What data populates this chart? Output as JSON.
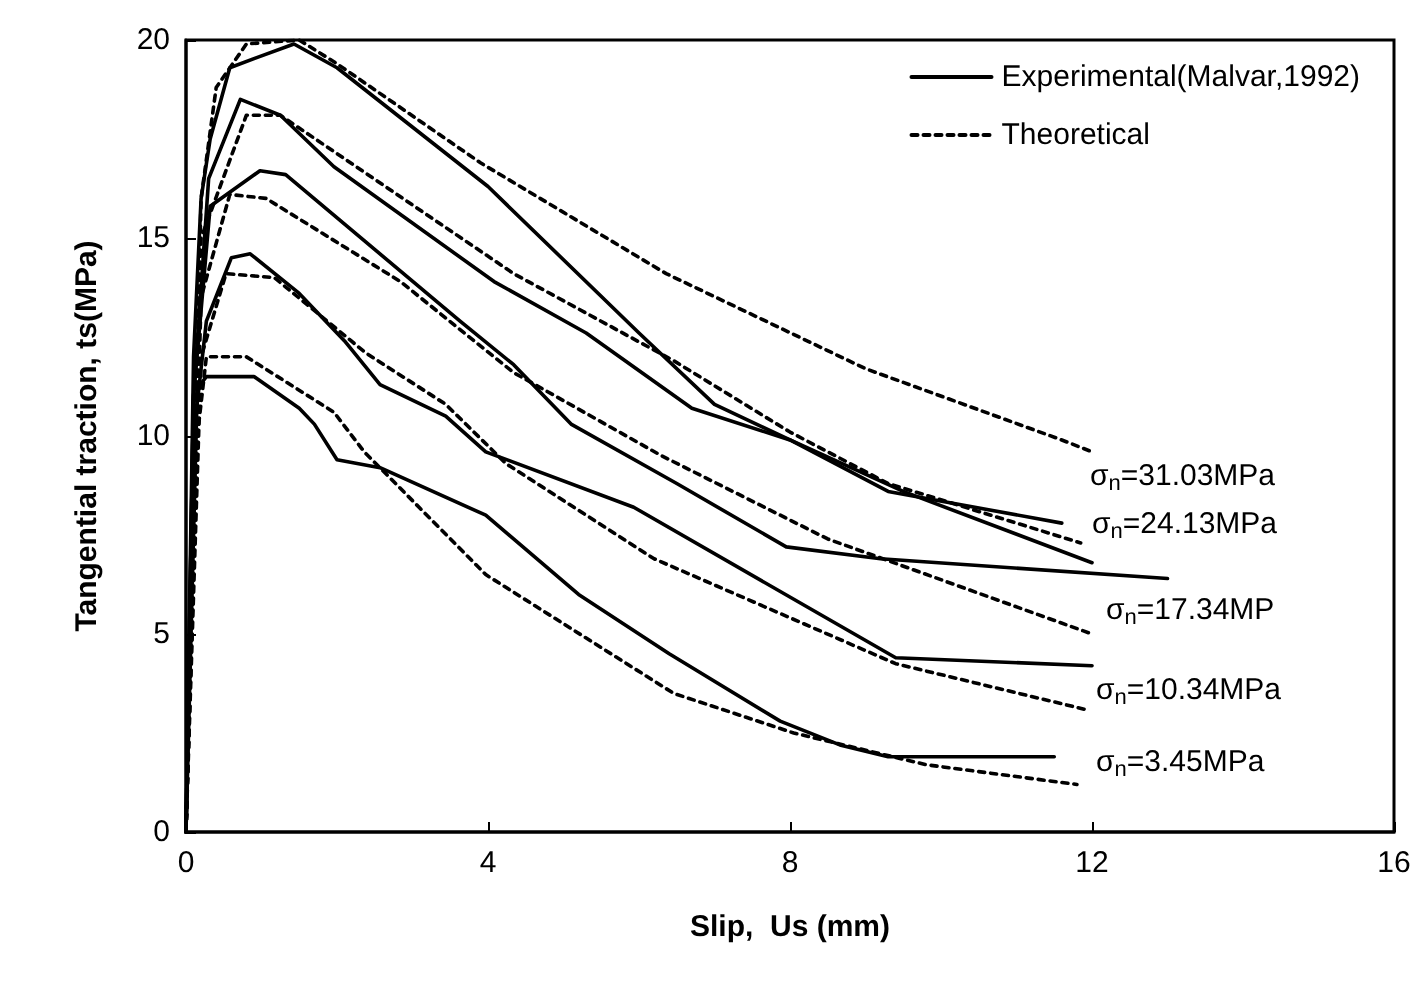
{
  "chart_data": {
    "type": "line",
    "xlabel": "Slip,  Us (mm)",
    "ylabel": "Tangential traction, ts(MPa)",
    "xlim": [
      0,
      16
    ],
    "xticks": [
      0,
      4,
      8,
      12,
      16
    ],
    "ylim": [
      0,
      20
    ],
    "yticks": [
      0,
      5,
      10,
      15,
      20
    ],
    "grid": false,
    "legend": "top right",
    "marker": "none",
    "series": [
      {
        "name": "Experimental(Malvar,1992)",
        "color": "#000000",
        "line_style": "solid",
        "x": [
          0,
          0.1,
          0.2,
          0.32,
          0.58,
          1.0,
          1.43,
          2.0,
          4.0,
          6.0,
          7.0,
          8.0,
          9.3,
          11.6
        ],
        "values": [
          0,
          12,
          16,
          17.5,
          19.3,
          19.6,
          19.9,
          19.3,
          16.3,
          12.6,
          10.8,
          9.9,
          8.6,
          7.8
        ]
      },
      {
        "color": "#000000",
        "line_style": "solid",
        "x": [
          0,
          0.1,
          0.3,
          0.72,
          1.25,
          1.96,
          4.08,
          5.3,
          6.7,
          8.0,
          9.5,
          12.0
        ],
        "values": [
          0,
          11,
          16.5,
          18.5,
          18.1,
          16.8,
          13.9,
          12.6,
          10.7,
          9.9,
          8.6,
          6.8
        ]
      },
      {
        "color": "#000000",
        "line_style": "solid",
        "x": [
          0,
          0.1,
          0.32,
          0.98,
          1.32,
          3.63,
          4.34,
          5.1,
          6.5,
          7.95,
          9.2,
          13.0
        ],
        "values": [
          0,
          11,
          15.8,
          16.7,
          16.6,
          12.9,
          11.8,
          10.3,
          8.8,
          7.2,
          6.9,
          6.4
        ]
      },
      {
        "color": "#000000",
        "line_style": "solid",
        "x": [
          0,
          0.1,
          0.27,
          0.6,
          0.85,
          1.5,
          2.1,
          2.57,
          3.44,
          3.97,
          5.93,
          9.4,
          12.0
        ],
        "values": [
          0,
          10,
          12.9,
          14.5,
          14.6,
          13.6,
          12.4,
          11.3,
          10.5,
          9.6,
          8.2,
          4.4,
          4.2
        ]
      },
      {
        "color": "#000000",
        "line_style": "solid",
        "x": [
          0,
          0.15,
          0.27,
          0.9,
          1.5,
          1.7,
          2.0,
          2.57,
          3.97,
          5.2,
          6.4,
          7.87,
          8.66,
          9.3,
          11.5
        ],
        "values": [
          0,
          11.2,
          11.5,
          11.5,
          10.7,
          10.3,
          9.4,
          9.2,
          8.0,
          6.0,
          4.5,
          2.8,
          2.2,
          1.9,
          1.9
        ]
      },
      {
        "name": "Theoretical",
        "color": "#000000",
        "line_style": "dashed",
        "x": [
          0,
          0.2,
          0.4,
          0.8,
          1.5,
          2.0,
          3.9,
          6.36,
          9.0,
          11.6,
          12.0
        ],
        "values": [
          0,
          16,
          18.8,
          19.9,
          20,
          19.4,
          16.9,
          14.1,
          11.7,
          9.9,
          9.6
        ]
      },
      {
        "color": "#000000",
        "line_style": "dashed",
        "x": [
          0,
          0.2,
          0.8,
          1.25,
          2.1,
          4.34,
          6.46,
          8.0,
          9.3,
          11.85
        ],
        "values": [
          0,
          15,
          18.1,
          18.1,
          17.0,
          14.1,
          11.9,
          10.1,
          8.8,
          7.3
        ]
      },
      {
        "color": "#000000",
        "line_style": "dashed",
        "x": [
          0,
          0.2,
          0.58,
          1.06,
          2.84,
          4.34,
          6.3,
          8.5,
          12.0
        ],
        "values": [
          0,
          13.5,
          16.1,
          16.0,
          13.9,
          11.6,
          9.5,
          7.4,
          5.0
        ]
      },
      {
        "color": "#000000",
        "line_style": "dashed",
        "x": [
          0,
          0.2,
          0.53,
          1.17,
          2.38,
          3.44,
          4.24,
          6.2,
          9.4,
          11.9
        ],
        "values": [
          0,
          12,
          14.1,
          14.0,
          12.1,
          10.8,
          9.3,
          6.9,
          4.25,
          3.1
        ]
      },
      {
        "color": "#000000",
        "line_style": "dashed",
        "x": [
          0,
          0.15,
          0.27,
          0.8,
          1.96,
          2.36,
          3.97,
          6.46,
          8.05,
          9.8,
          11.8
        ],
        "values": [
          0,
          10,
          12.0,
          12.0,
          10.6,
          9.6,
          6.5,
          3.5,
          2.5,
          1.7,
          1.2
        ]
      }
    ],
    "annotations": [
      "σ$_{n}$=31.03MPa",
      "σ$_{n}$=24.13MPa",
      "σ$_{n}$=17.34MP",
      "σ$_{n}$=10.34MPa",
      "σ$_{n}$=3.45MPa"
    ]
  }
}
